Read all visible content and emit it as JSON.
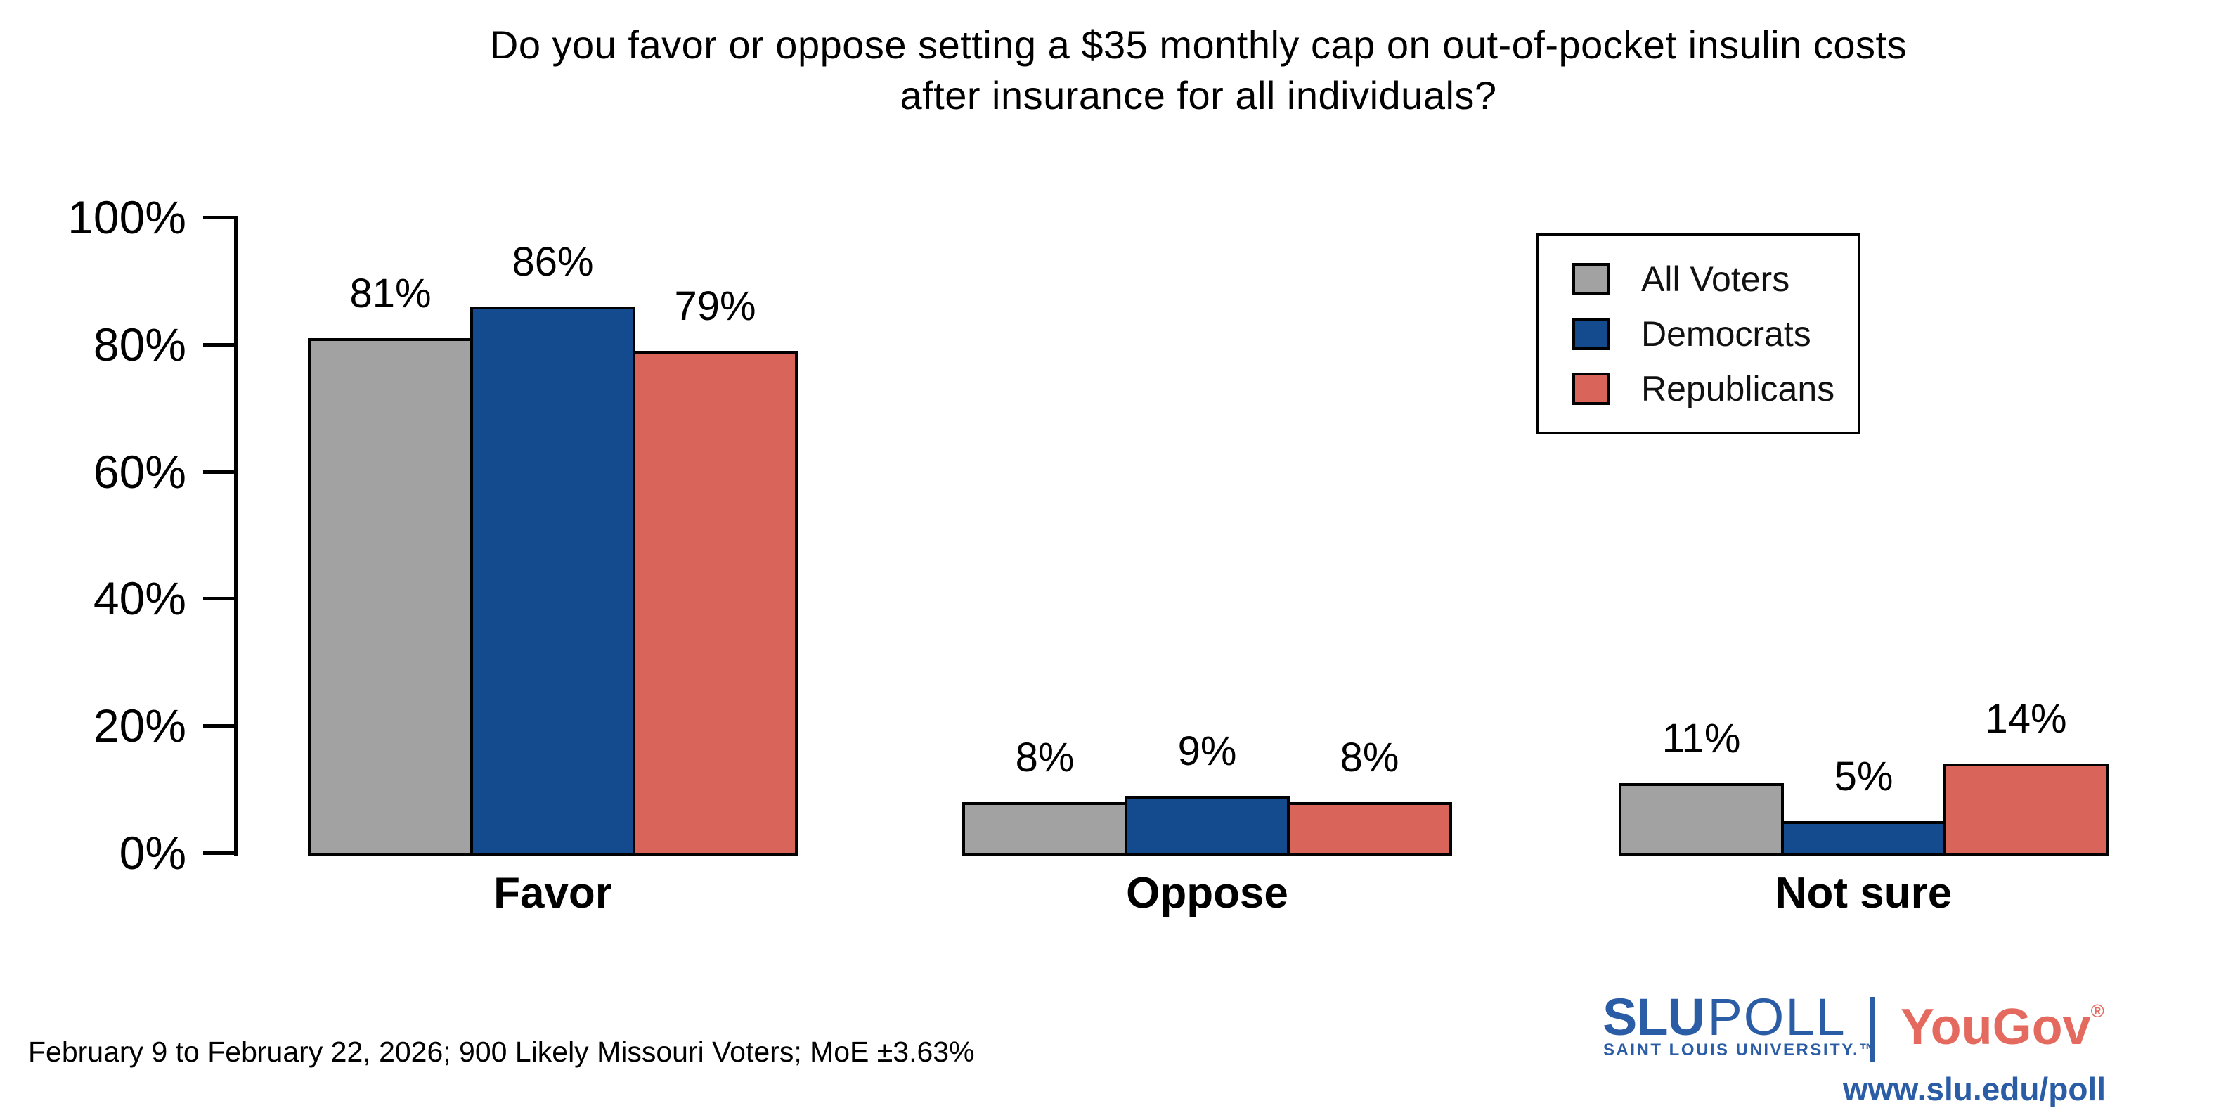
{
  "title": {
    "line1": "Do you favor or oppose setting a $35 monthly cap on out-of-pocket insulin costs",
    "line2": "after insurance for all individuals?"
  },
  "chart_data": {
    "type": "bar",
    "title": "Do you favor or oppose setting a $35 monthly cap on out-of-pocket insulin costs after insurance for all individuals?",
    "categories": [
      "Favor",
      "Oppose",
      "Not sure"
    ],
    "series": [
      {
        "name": "All Voters",
        "color": "#a2a2a2",
        "values": [
          81,
          8,
          11
        ]
      },
      {
        "name": "Democrats",
        "color": "#134b8e",
        "values": [
          86,
          9,
          5
        ]
      },
      {
        "name": "Republicans",
        "color": "#d96459",
        "values": [
          79,
          8,
          14
        ]
      }
    ],
    "value_label_format": "percent",
    "ylim": [
      0,
      100
    ],
    "yticks": [
      0,
      20,
      40,
      60,
      80,
      100
    ],
    "ytick_labels": [
      "0%",
      "20%",
      "40%",
      "60%",
      "80%",
      "100%"
    ],
    "grid": false,
    "legend_position": "upper right",
    "bar_outline_color": "#000000"
  },
  "footer": {
    "note": "February 9 to February 22, 2026; 900 Likely Missouri Voters; MoE ±3.63%"
  },
  "branding": {
    "slu": "SLU",
    "poll": "POLL",
    "university": "SAINT LOUIS UNIVERSITY.™",
    "yougov": "YouGov",
    "registered": "®",
    "url": "www.slu.edu/poll",
    "slu_blue": "#2b5ca6",
    "yougov_red": "#e4695e"
  }
}
